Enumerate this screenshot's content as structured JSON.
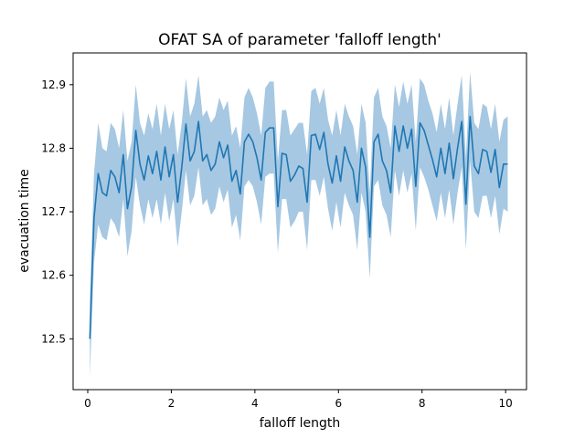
{
  "chart_data": {
    "type": "line",
    "title": "OFAT SA of parameter 'falloff length'",
    "xlabel": "falloff length",
    "ylabel": "evacuation time",
    "xlim": [
      -0.35,
      10.5
    ],
    "ylim": [
      12.42,
      12.95
    ],
    "xticks": [
      0,
      2,
      4,
      6,
      8,
      10
    ],
    "yticks": [
      12.5,
      12.6,
      12.7,
      12.8,
      12.9
    ],
    "grid": false,
    "series": [
      {
        "color": "#1f77b4",
        "band_color": "#a6c8e2",
        "x": [
          0.05,
          0.15,
          0.25,
          0.35,
          0.45,
          0.55,
          0.65,
          0.75,
          0.85,
          0.95,
          1.05,
          1.15,
          1.25,
          1.35,
          1.45,
          1.55,
          1.65,
          1.75,
          1.85,
          1.95,
          2.05,
          2.15,
          2.25,
          2.35,
          2.45,
          2.55,
          2.65,
          2.75,
          2.85,
          2.95,
          3.05,
          3.15,
          3.25,
          3.35,
          3.45,
          3.55,
          3.65,
          3.75,
          3.85,
          3.95,
          4.05,
          4.15,
          4.25,
          4.35,
          4.45,
          4.55,
          4.65,
          4.75,
          4.85,
          4.95,
          5.05,
          5.15,
          5.25,
          5.35,
          5.45,
          5.55,
          5.65,
          5.75,
          5.85,
          5.95,
          6.05,
          6.15,
          6.25,
          6.35,
          6.45,
          6.55,
          6.65,
          6.75,
          6.85,
          6.95,
          7.05,
          7.15,
          7.25,
          7.35,
          7.45,
          7.55,
          7.65,
          7.75,
          7.85,
          7.95,
          8.05,
          8.15,
          8.25,
          8.35,
          8.45,
          8.55,
          8.65,
          8.75,
          8.85,
          8.95,
          9.05,
          9.15,
          9.25,
          9.35,
          9.45,
          9.55,
          9.65,
          9.75,
          9.85,
          9.95,
          10.05
        ],
        "y": [
          12.5,
          12.69,
          12.76,
          12.73,
          12.725,
          12.765,
          12.755,
          12.73,
          12.79,
          12.705,
          12.74,
          12.828,
          12.775,
          12.75,
          12.788,
          12.76,
          12.795,
          12.75,
          12.802,
          12.755,
          12.79,
          12.715,
          12.77,
          12.838,
          12.78,
          12.795,
          12.842,
          12.78,
          12.79,
          12.765,
          12.775,
          12.81,
          12.785,
          12.805,
          12.748,
          12.765,
          12.728,
          12.81,
          12.822,
          12.81,
          12.785,
          12.75,
          12.825,
          12.832,
          12.832,
          12.708,
          12.792,
          12.79,
          12.748,
          12.758,
          12.772,
          12.768,
          12.715,
          12.82,
          12.822,
          12.798,
          12.825,
          12.775,
          12.745,
          12.788,
          12.748,
          12.802,
          12.78,
          12.765,
          12.715,
          12.8,
          12.77,
          12.66,
          12.81,
          12.822,
          12.78,
          12.765,
          12.73,
          12.835,
          12.795,
          12.835,
          12.8,
          12.83,
          12.74,
          12.84,
          12.828,
          12.805,
          12.782,
          12.755,
          12.8,
          12.76,
          12.808,
          12.752,
          12.8,
          12.842,
          12.712,
          12.85,
          12.772,
          12.76,
          12.798,
          12.795,
          12.762,
          12.798,
          12.738,
          12.775,
          12.775
        ],
        "upper": [
          12.56,
          12.76,
          12.84,
          12.8,
          12.795,
          12.84,
          12.83,
          12.8,
          12.86,
          12.78,
          12.81,
          12.9,
          12.84,
          12.82,
          12.855,
          12.83,
          12.87,
          12.82,
          12.87,
          12.83,
          12.86,
          12.79,
          12.84,
          12.91,
          12.85,
          12.87,
          12.915,
          12.85,
          12.86,
          12.84,
          12.85,
          12.88,
          12.86,
          12.875,
          12.82,
          12.835,
          12.8,
          12.88,
          12.895,
          12.88,
          12.855,
          12.82,
          12.895,
          12.905,
          12.905,
          12.78,
          12.86,
          12.86,
          12.82,
          12.83,
          12.84,
          12.84,
          12.79,
          12.89,
          12.895,
          12.87,
          12.895,
          12.845,
          12.82,
          12.86,
          12.82,
          12.87,
          12.85,
          12.835,
          12.79,
          12.87,
          12.84,
          12.73,
          12.88,
          12.895,
          12.85,
          12.835,
          12.8,
          12.9,
          12.865,
          12.905,
          12.87,
          12.9,
          12.81,
          12.91,
          12.9,
          12.875,
          12.855,
          12.825,
          12.87,
          12.83,
          12.88,
          12.82,
          12.87,
          12.915,
          12.785,
          12.92,
          12.84,
          12.83,
          12.87,
          12.865,
          12.83,
          12.87,
          12.81,
          12.845,
          12.85
        ],
        "lower": [
          12.44,
          12.62,
          12.68,
          12.66,
          12.655,
          12.69,
          12.68,
          12.66,
          12.72,
          12.63,
          12.67,
          12.755,
          12.71,
          12.68,
          12.72,
          12.69,
          12.72,
          12.68,
          12.73,
          12.685,
          12.72,
          12.645,
          12.7,
          12.765,
          12.71,
          12.725,
          12.77,
          12.71,
          12.72,
          12.695,
          12.705,
          12.74,
          12.715,
          12.735,
          12.675,
          12.695,
          12.655,
          12.74,
          12.75,
          12.74,
          12.715,
          12.68,
          12.755,
          12.76,
          12.76,
          12.635,
          12.72,
          12.72,
          12.675,
          12.685,
          12.7,
          12.7,
          12.64,
          12.75,
          12.75,
          12.725,
          12.755,
          12.705,
          12.67,
          12.715,
          12.675,
          12.73,
          12.71,
          12.695,
          12.64,
          12.73,
          12.7,
          12.595,
          12.74,
          12.75,
          12.71,
          12.695,
          12.66,
          12.765,
          12.725,
          12.765,
          12.73,
          12.76,
          12.67,
          12.77,
          12.755,
          12.735,
          12.71,
          12.685,
          12.73,
          12.69,
          12.735,
          12.68,
          12.73,
          12.77,
          12.64,
          12.78,
          12.7,
          12.69,
          12.725,
          12.725,
          12.69,
          12.725,
          12.665,
          12.705,
          12.7
        ]
      }
    ]
  }
}
